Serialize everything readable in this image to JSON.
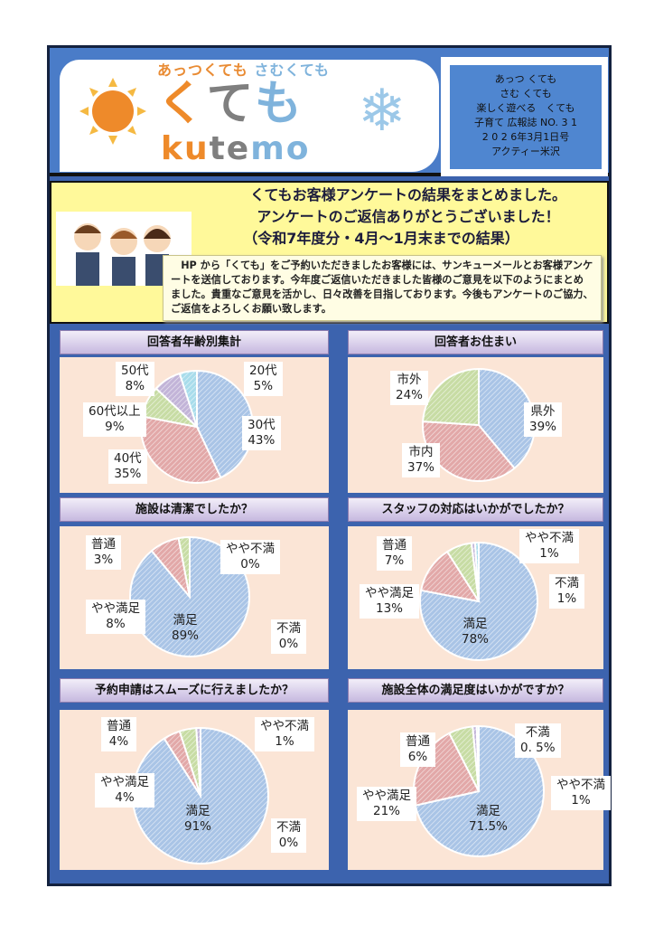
{
  "header": {
    "logo_sub_hot": "あっつくても",
    "logo_sub_cold": "さむくても",
    "logo_main": [
      "く",
      "て",
      "も"
    ],
    "logo_en": [
      "ku",
      "te",
      "mo"
    ],
    "info": [
      "あっつ くても",
      "さむ くても",
      "楽しく遊べる　くても",
      "子育て 広報誌 NO. 3 1",
      "2 0 2 6年3月1日号",
      "アクティー米沢"
    ]
  },
  "intro": {
    "title1": "くてもお客様アンケートの結果をまとめました。",
    "title2": "アンケートのご返信ありがとうございました！",
    "title3": "（令和7年度分・4月～1月末までの結果）",
    "body": "　HP から「くても」をご予約いただきましたお客様には、サンキューメールとお客様アンケートを送信しております。今年度ご返信いただきました皆様のご意見を以下のようにまとめました。貴重なご意見を活かし、日々改善を目指しております。今後もアンケートのご協力、ご返信をよろしくお願い致します。"
  },
  "colors": {
    "blue": "#a9c4e6",
    "red": "#e2a8a8",
    "green": "#c7dca4",
    "purple": "#c2b4d8",
    "cyan": "#a8dceb",
    "panel": "#fbe5d6"
  },
  "chart_data": [
    {
      "type": "pie",
      "title": "回答者年齢別集計",
      "slices": [
        {
          "label": "30代",
          "value": 43,
          "text": "43%",
          "color": "blue"
        },
        {
          "label": "40代",
          "value": 35,
          "text": "35%",
          "color": "red"
        },
        {
          "label": "60代以上",
          "value": 9,
          "text": "9%",
          "color": "green"
        },
        {
          "label": "50代",
          "value": 8,
          "text": "8%",
          "color": "purple"
        },
        {
          "label": "20代",
          "value": 5,
          "text": "5%",
          "color": "cyan"
        }
      ]
    },
    {
      "type": "pie",
      "title": "回答者お住まい",
      "slices": [
        {
          "label": "県外",
          "value": 39,
          "text": "39%",
          "color": "blue"
        },
        {
          "label": "市内",
          "value": 37,
          "text": "37%",
          "color": "red"
        },
        {
          "label": "市外",
          "value": 24,
          "text": "24%",
          "color": "green"
        }
      ]
    },
    {
      "type": "pie",
      "title": "施設は清潔でしたか？",
      "slices": [
        {
          "label": "満足",
          "value": 89,
          "text": "89%",
          "color": "blue"
        },
        {
          "label": "やや満足",
          "value": 8,
          "text": "8%",
          "color": "red"
        },
        {
          "label": "普通",
          "value": 3,
          "text": "3%",
          "color": "green"
        },
        {
          "label": "やや不満",
          "value": 0,
          "text": "0%",
          "color": "purple"
        },
        {
          "label": "不満",
          "value": 0,
          "text": "0%",
          "color": "cyan"
        }
      ]
    },
    {
      "type": "pie",
      "title": "スタッフの対応はいかがでしたか？",
      "slices": [
        {
          "label": "満足",
          "value": 78,
          "text": "78%",
          "color": "blue"
        },
        {
          "label": "やや満足",
          "value": 13,
          "text": "13%",
          "color": "red"
        },
        {
          "label": "普通",
          "value": 7,
          "text": "7%",
          "color": "green"
        },
        {
          "label": "やや不満",
          "value": 1,
          "text": "1%",
          "color": "purple"
        },
        {
          "label": "不満",
          "value": 1,
          "text": "1%",
          "color": "cyan"
        }
      ]
    },
    {
      "type": "pie",
      "title": "予約申請はスムーズに行えましたか？",
      "slices": [
        {
          "label": "満足",
          "value": 91,
          "text": "91%",
          "color": "blue"
        },
        {
          "label": "やや満足",
          "value": 4,
          "text": "4%",
          "color": "red"
        },
        {
          "label": "普通",
          "value": 4,
          "text": "4%",
          "color": "green"
        },
        {
          "label": "やや不満",
          "value": 1,
          "text": "1%",
          "color": "purple"
        },
        {
          "label": "不満",
          "value": 0,
          "text": "0%",
          "color": "cyan"
        }
      ]
    },
    {
      "type": "pie",
      "title": "施設全体の満足度はいかがですか？",
      "slices": [
        {
          "label": "満足",
          "value": 71.5,
          "text": "71.5%",
          "color": "blue"
        },
        {
          "label": "やや満足",
          "value": 21,
          "text": "21%",
          "color": "red"
        },
        {
          "label": "普通",
          "value": 6,
          "text": "6%",
          "color": "green"
        },
        {
          "label": "やや不満",
          "value": 1,
          "text": "1%",
          "color": "purple"
        },
        {
          "label": "不満",
          "value": 0.5,
          "text": "0. 5%",
          "color": "cyan"
        }
      ]
    }
  ]
}
